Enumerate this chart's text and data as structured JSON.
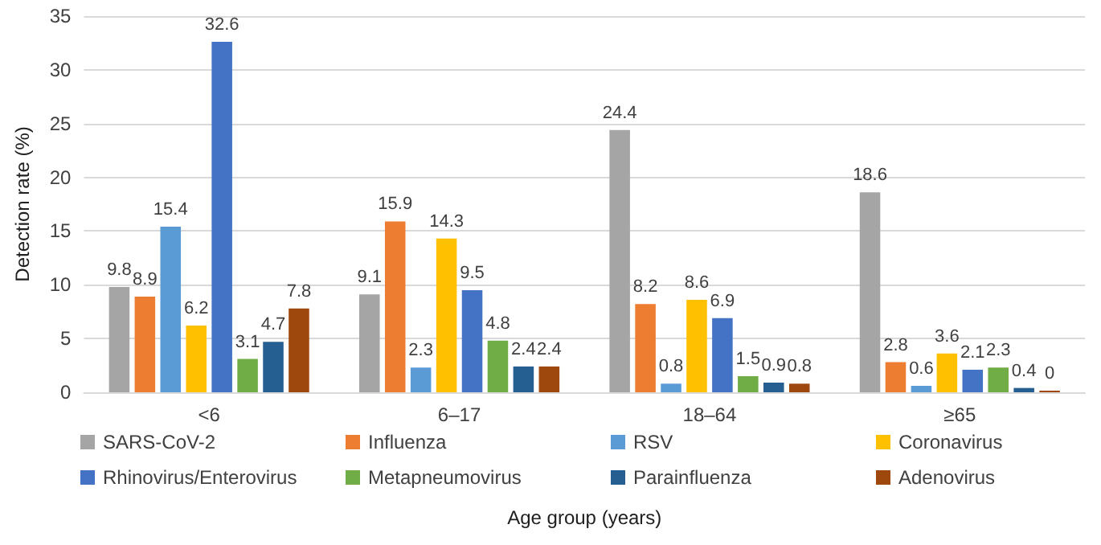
{
  "chart_data": {
    "type": "bar",
    "xlabel": "Age group (years)",
    "ylabel": "Detection rate (%)",
    "categories": [
      "<6",
      "6–17",
      "18–64",
      "≥65"
    ],
    "series": [
      {
        "name": "SARS-CoV-2",
        "color": "#a5a5a5",
        "values": [
          9.8,
          9.1,
          24.4,
          18.6
        ]
      },
      {
        "name": "Influenza",
        "color": "#ed7d31",
        "values": [
          8.9,
          15.9,
          8.2,
          2.8
        ]
      },
      {
        "name": "RSV",
        "color": "#5b9bd5",
        "values": [
          15.4,
          2.3,
          0.8,
          0.6
        ]
      },
      {
        "name": "Coronavirus",
        "color": "#ffc000",
        "values": [
          6.2,
          14.3,
          8.6,
          3.6
        ]
      },
      {
        "name": "Rhinovirus/Enterovirus",
        "color": "#4472c4",
        "values": [
          32.6,
          9.5,
          6.9,
          2.1
        ]
      },
      {
        "name": "Metapneumovirus",
        "color": "#70ad47",
        "values": [
          3.1,
          4.8,
          1.5,
          2.3
        ]
      },
      {
        "name": "Parainfluenza",
        "color": "#255e91",
        "values": [
          4.7,
          2.4,
          0.9,
          0.4
        ]
      },
      {
        "name": "Adenovirus",
        "color": "#9e480e",
        "values": [
          7.8,
          2.4,
          0.8,
          0
        ]
      }
    ],
    "ylim": [
      0,
      35
    ],
    "yticks": [
      0,
      5,
      10,
      15,
      20,
      25,
      30,
      35
    ],
    "grid": "y",
    "legend": "bottom",
    "data_labels": true
  }
}
